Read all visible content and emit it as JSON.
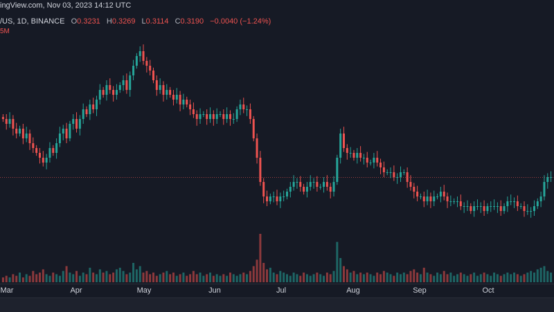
{
  "header": {
    "source": "ingView.com, Nov 03, 2023 14:12 UTC",
    "symbol": "/US, 1D, BINANCE",
    "open_label": "O",
    "open": "0.3231",
    "high_label": "H",
    "high": "0.3269",
    "low_label": "L",
    "low": "0.3114",
    "close_label": "C",
    "close": "0.3190",
    "change": "−0.0040 (−1.24%)",
    "volume_label": "5M"
  },
  "colors": {
    "up": "#26a69a",
    "down": "#ef5350",
    "background": "#161a25",
    "grid": "#2a2e39",
    "price_line": "#ef5350"
  },
  "chart_data": {
    "type": "candlestick",
    "xlabel": "",
    "ylabel": "",
    "x_ticks": [
      "Mar",
      "Apr",
      "May",
      "Jun",
      "Jul",
      "Aug",
      "Sep",
      "Oct"
    ],
    "current_price": 0.319,
    "ylim": [
      0.2,
      0.6
    ],
    "close_series": [
      0.44,
      0.43,
      0.44,
      0.42,
      0.41,
      0.42,
      0.4,
      0.41,
      0.39,
      0.38,
      0.37,
      0.36,
      0.35,
      0.36,
      0.38,
      0.37,
      0.39,
      0.41,
      0.42,
      0.4,
      0.43,
      0.44,
      0.42,
      0.44,
      0.46,
      0.45,
      0.47,
      0.46,
      0.48,
      0.5,
      0.49,
      0.51,
      0.5,
      0.49,
      0.5,
      0.51,
      0.52,
      0.5,
      0.53,
      0.55,
      0.57,
      0.58,
      0.56,
      0.55,
      0.54,
      0.52,
      0.5,
      0.51,
      0.49,
      0.5,
      0.49,
      0.48,
      0.49,
      0.47,
      0.48,
      0.47,
      0.46,
      0.45,
      0.44,
      0.45,
      0.45,
      0.44,
      0.45,
      0.44,
      0.45,
      0.45,
      0.44,
      0.45,
      0.44,
      0.44,
      0.46,
      0.47,
      0.46,
      0.46,
      0.44,
      0.4,
      0.36,
      0.31,
      0.28,
      0.27,
      0.28,
      0.28,
      0.27,
      0.28,
      0.28,
      0.29,
      0.3,
      0.31,
      0.31,
      0.3,
      0.29,
      0.3,
      0.31,
      0.31,
      0.3,
      0.3,
      0.31,
      0.3,
      0.29,
      0.31,
      0.36,
      0.41,
      0.38,
      0.37,
      0.37,
      0.36,
      0.37,
      0.36,
      0.36,
      0.35,
      0.35,
      0.36,
      0.35,
      0.34,
      0.33,
      0.33,
      0.33,
      0.32,
      0.32,
      0.33,
      0.33,
      0.31,
      0.3,
      0.29,
      0.28,
      0.28,
      0.27,
      0.28,
      0.27,
      0.28,
      0.28,
      0.29,
      0.28,
      0.27,
      0.27,
      0.27,
      0.27,
      0.26,
      0.26,
      0.26,
      0.25,
      0.26,
      0.26,
      0.26,
      0.25,
      0.26,
      0.26,
      0.26,
      0.26,
      0.25,
      0.26,
      0.27,
      0.27,
      0.27,
      0.26,
      0.26,
      0.25,
      0.25,
      0.25,
      0.26,
      0.27,
      0.28,
      0.31,
      0.32,
      0.32
    ],
    "volume_series": [
      3,
      4,
      3,
      5,
      4,
      6,
      3,
      5,
      4,
      7,
      5,
      6,
      8,
      5,
      4,
      6,
      5,
      4,
      7,
      10,
      6,
      5,
      7,
      4,
      6,
      5,
      9,
      6,
      5,
      8,
      6,
      7,
      5,
      6,
      8,
      9,
      7,
      5,
      6,
      12,
      8,
      10,
      6,
      7,
      5,
      6,
      4,
      5,
      6,
      7,
      5,
      6,
      4,
      5,
      6,
      4,
      5,
      7,
      5,
      6,
      4,
      5,
      6,
      4,
      5,
      4,
      5,
      4,
      6,
      5,
      4,
      5,
      6,
      5,
      7,
      10,
      14,
      30,
      12,
      8,
      9,
      6,
      5,
      7,
      6,
      5,
      4,
      6,
      5,
      4,
      6,
      5,
      4,
      5,
      6,
      5,
      4,
      6,
      5,
      7,
      25,
      15,
      10,
      8,
      6,
      7,
      5,
      6,
      5,
      6,
      5,
      4,
      6,
      5,
      7,
      6,
      5,
      4,
      6,
      5,
      6,
      5,
      7,
      8,
      6,
      5,
      9,
      6,
      5,
      4,
      6,
      5,
      7,
      5,
      6,
      4,
      5,
      6,
      5,
      4,
      5,
      6,
      4,
      5,
      6,
      5,
      4,
      6,
      5,
      4,
      5,
      6,
      5,
      6,
      5,
      4,
      5,
      6,
      7,
      6,
      8,
      9,
      10,
      7,
      6
    ]
  }
}
